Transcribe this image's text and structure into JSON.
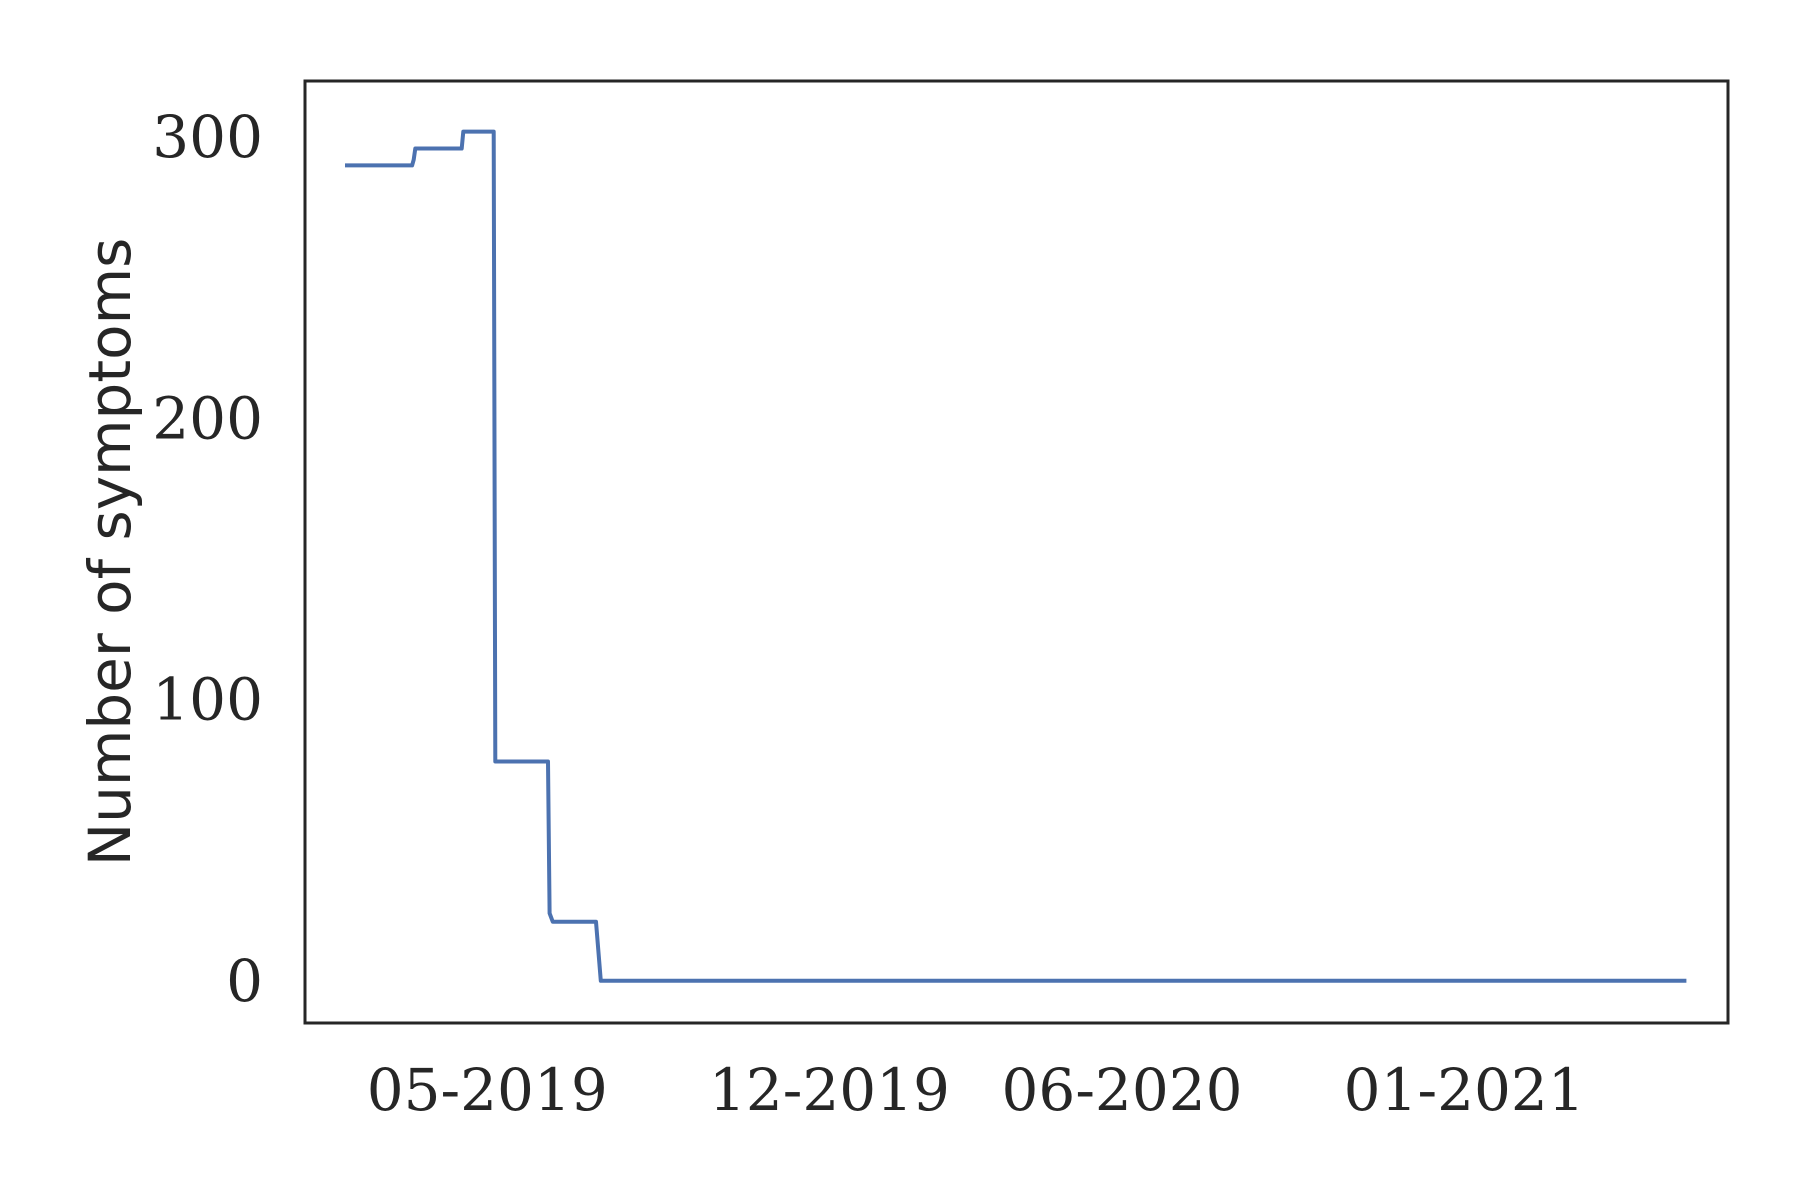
{
  "chart_data": {
    "type": "line",
    "title": "",
    "xlabel": "",
    "ylabel": "Number of symptoms",
    "xlim": [
      "2019-01-07",
      "2021-06-15"
    ],
    "ylim": [
      -15,
      320
    ],
    "x_ticks": [
      {
        "date": "2019-05-01",
        "label": "05-2019"
      },
      {
        "date": "2019-12-01",
        "label": "12-2019"
      },
      {
        "date": "2020-06-01",
        "label": "06-2020"
      },
      {
        "date": "2021-01-01",
        "label": "01-2021"
      }
    ],
    "y_ticks": [
      0,
      100,
      200,
      300
    ],
    "grid": false,
    "line_color": "#4c72b0",
    "series": [
      {
        "x": [
          "2019-02-01",
          "2019-03-15",
          "2019-03-16",
          "2019-03-17",
          "2019-04-15",
          "2019-04-16",
          "2019-05-05",
          "2019-05-06",
          "2019-06-08",
          "2019-06-09",
          "2019-06-11",
          "2019-07-08",
          "2019-07-11",
          "2021-05-20"
        ],
        "y": [
          290,
          290,
          292,
          296,
          296,
          302,
          302,
          78,
          78,
          24,
          21,
          21,
          0,
          0
        ]
      }
    ]
  }
}
